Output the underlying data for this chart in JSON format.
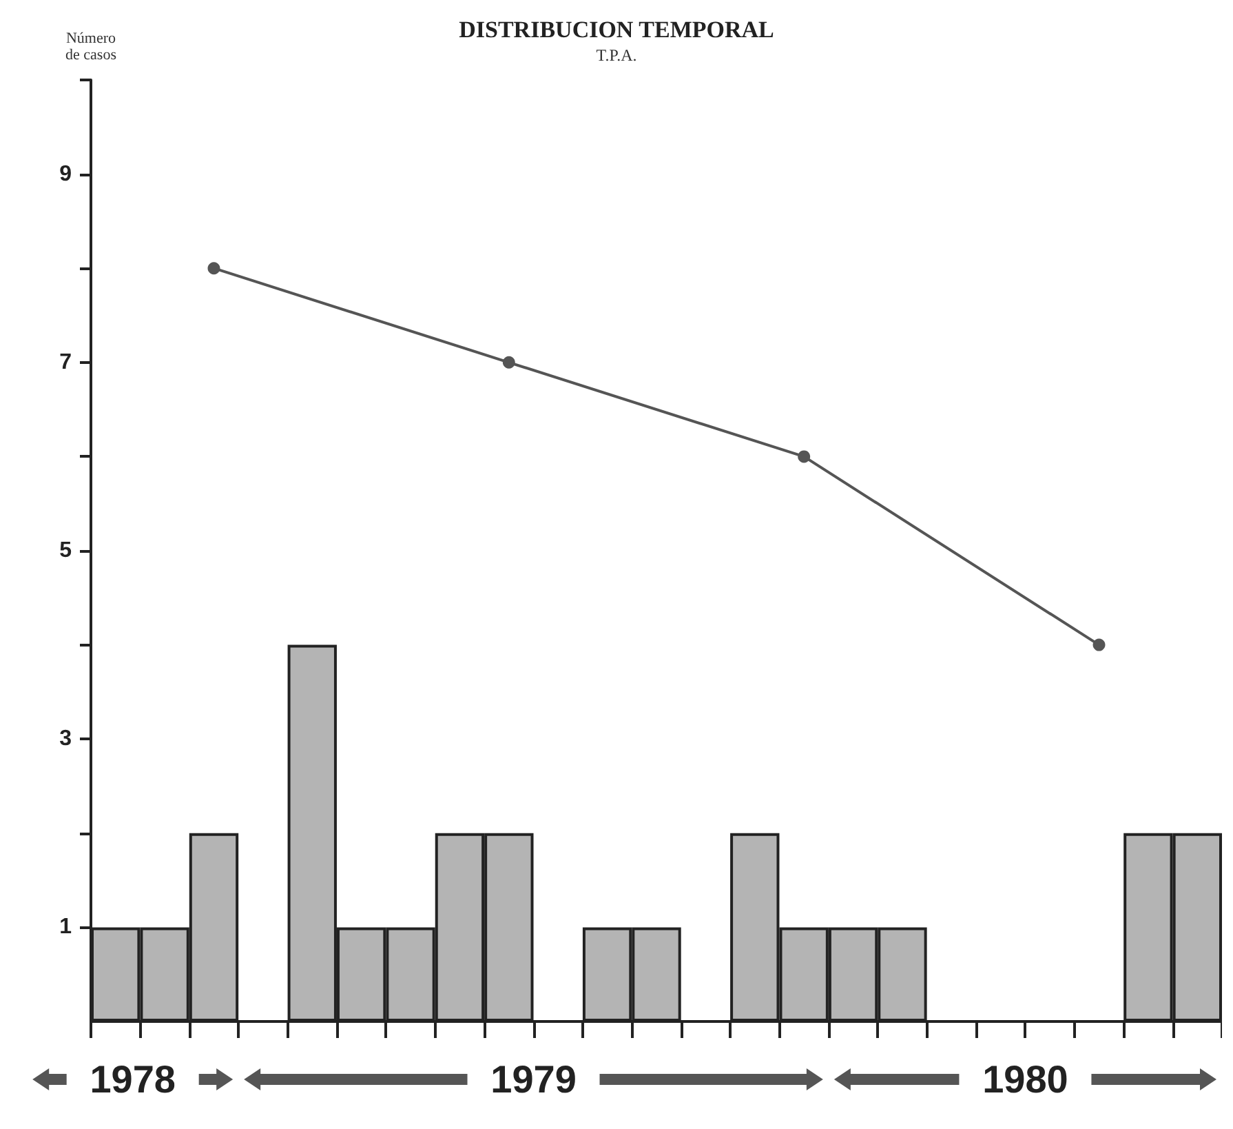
{
  "chart_data": {
    "type": "bar",
    "title": "DISTRIBUCION TEMPORAL",
    "subtitle": "T.P.A.",
    "ylabel": "Número\nde casos",
    "categories": [
      null,
      null,
      null,
      null,
      null,
      null,
      null,
      null,
      null,
      null,
      null,
      null,
      null,
      null,
      null,
      null,
      null,
      null,
      null,
      null,
      null,
      null,
      null
    ],
    "series": [
      {
        "color": "#b4b4b4",
        "values": [
          1,
          1,
          2,
          0,
          4,
          1,
          1,
          2,
          2,
          0,
          1,
          1,
          0,
          2,
          1,
          1,
          1,
          0,
          0,
          0,
          0,
          2,
          2
        ]
      },
      {
        "type": "line",
        "color": "#555555",
        "values": [
          null,
          null,
          8,
          null,
          null,
          null,
          null,
          null,
          7,
          null,
          null,
          null,
          null,
          null,
          6,
          null,
          null,
          null,
          null,
          null,
          4,
          null,
          null
        ]
      }
    ],
    "ylim": [
      0,
      10
    ],
    "yticks": [
      1,
      {
        "value": 2,
        "label": null
      },
      3,
      {
        "value": 4,
        "label": null
      },
      5,
      {
        "value": 6,
        "label": null
      },
      7,
      {
        "value": 8,
        "label": null
      },
      9,
      {
        "value": 10,
        "label": null
      }
    ],
    "tick_labels": "y",
    "grid": false,
    "marker": "circle",
    "line_style": "solid",
    "annotations": [
      "1978",
      "1979",
      "1980"
    ]
  }
}
